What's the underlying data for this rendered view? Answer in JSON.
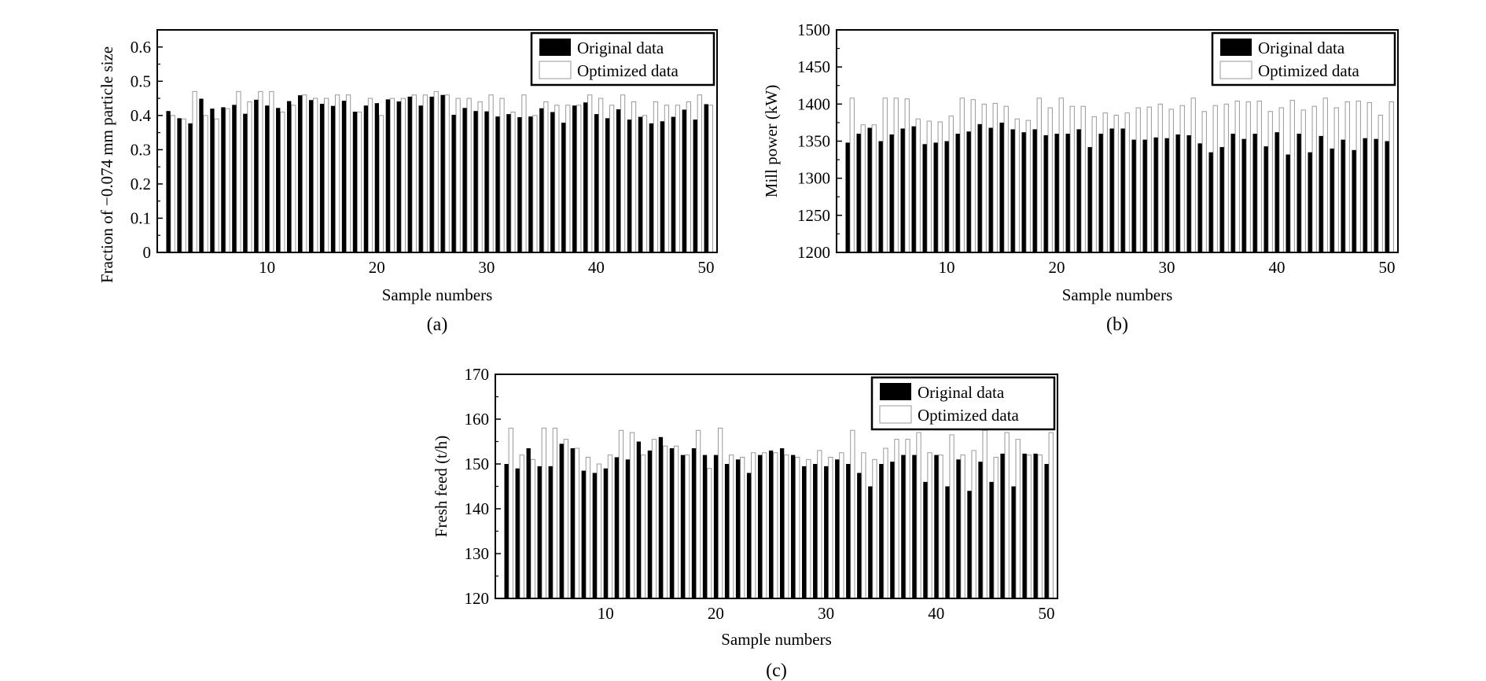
{
  "colors": {
    "original": "#000000",
    "optimized": "#ffffff",
    "optimized_edge": "#999999"
  },
  "chart_data": [
    {
      "type": "bar",
      "caption": "(a)",
      "xlabel": "Sample numbers",
      "ylabel": "Fraction of −0.074 mm particle size",
      "xlim": [
        0,
        51
      ],
      "ylim": [
        0,
        0.65
      ],
      "xticks": [
        10,
        20,
        30,
        40,
        50
      ],
      "yticks": [
        0,
        0.1,
        0.2,
        0.3,
        0.4,
        0.5,
        0.6
      ],
      "ytick_labels": [
        "0",
        "0.1",
        "0.2",
        "0.3",
        "0.4",
        "0.5",
        "0.6"
      ],
      "legend": "top-right",
      "grid": false,
      "x": [
        1,
        2,
        3,
        4,
        5,
        6,
        7,
        8,
        9,
        10,
        11,
        12,
        13,
        14,
        15,
        16,
        17,
        18,
        19,
        20,
        21,
        22,
        23,
        24,
        25,
        26,
        27,
        28,
        29,
        30,
        31,
        32,
        33,
        34,
        35,
        36,
        37,
        38,
        39,
        40,
        41,
        42,
        43,
        44,
        45,
        46,
        47,
        48,
        49,
        50
      ],
      "series": [
        {
          "name": "Original data",
          "values": [
            0.413,
            0.392,
            0.377,
            0.449,
            0.42,
            0.424,
            0.431,
            0.405,
            0.446,
            0.429,
            0.422,
            0.442,
            0.459,
            0.445,
            0.434,
            0.428,
            0.443,
            0.411,
            0.429,
            0.436,
            0.447,
            0.441,
            0.455,
            0.429,
            0.455,
            0.46,
            0.402,
            0.422,
            0.413,
            0.412,
            0.397,
            0.404,
            0.395,
            0.397,
            0.421,
            0.41,
            0.379,
            0.429,
            0.438,
            0.404,
            0.392,
            0.418,
            0.388,
            0.396,
            0.377,
            0.383,
            0.396,
            0.417,
            0.388,
            0.433
          ]
        },
        {
          "name": "Optimized data",
          "values": [
            0.4,
            0.39,
            0.47,
            0.4,
            0.39,
            0.42,
            0.47,
            0.44,
            0.47,
            0.47,
            0.41,
            0.43,
            0.46,
            0.45,
            0.45,
            0.46,
            0.46,
            0.41,
            0.45,
            0.4,
            0.45,
            0.45,
            0.46,
            0.46,
            0.47,
            0.46,
            0.45,
            0.45,
            0.44,
            0.46,
            0.45,
            0.41,
            0.46,
            0.4,
            0.44,
            0.43,
            0.43,
            0.43,
            0.46,
            0.45,
            0.43,
            0.46,
            0.44,
            0.4,
            0.44,
            0.43,
            0.43,
            0.44,
            0.46,
            0.43
          ]
        }
      ]
    },
    {
      "type": "bar",
      "caption": "(b)",
      "xlabel": "Sample numbers",
      "ylabel": "Mill power (kW)",
      "xlim": [
        0,
        51
      ],
      "ylim": [
        1200,
        1500
      ],
      "xticks": [
        10,
        20,
        30,
        40,
        50
      ],
      "yticks": [
        1200,
        1250,
        1300,
        1350,
        1400,
        1450,
        1500
      ],
      "ytick_labels": [
        "1200",
        "1250",
        "1300",
        "1350",
        "1400",
        "1450",
        "1500"
      ],
      "legend": "top-right",
      "grid": false,
      "x": [
        1,
        2,
        3,
        4,
        5,
        6,
        7,
        8,
        9,
        10,
        11,
        12,
        13,
        14,
        15,
        16,
        17,
        18,
        19,
        20,
        21,
        22,
        23,
        24,
        25,
        26,
        27,
        28,
        29,
        30,
        31,
        32,
        33,
        34,
        35,
        36,
        37,
        38,
        39,
        40,
        41,
        42,
        43,
        44,
        45,
        46,
        47,
        48,
        49,
        50
      ],
      "series": [
        {
          "name": "Original data",
          "values": [
            1348,
            1360,
            1368,
            1350,
            1359,
            1367,
            1370,
            1346,
            1348,
            1350,
            1360,
            1363,
            1373,
            1368,
            1375,
            1366,
            1362,
            1366,
            1358,
            1360,
            1360,
            1366,
            1342,
            1360,
            1367,
            1367,
            1352,
            1352,
            1355,
            1354,
            1359,
            1358,
            1347,
            1335,
            1342,
            1360,
            1353,
            1360,
            1343,
            1362,
            1332,
            1360,
            1335,
            1357,
            1340,
            1352,
            1338,
            1354,
            1353,
            1350
          ]
        },
        {
          "name": "Optimized data",
          "values": [
            1408,
            1372,
            1372,
            1408,
            1408,
            1407,
            1380,
            1377,
            1376,
            1384,
            1408,
            1406,
            1400,
            1401,
            1397,
            1380,
            1378,
            1408,
            1395,
            1408,
            1397,
            1397,
            1383,
            1388,
            1385,
            1388,
            1395,
            1396,
            1400,
            1393,
            1398,
            1408,
            1390,
            1398,
            1400,
            1404,
            1403,
            1404,
            1390,
            1395,
            1405,
            1392,
            1397,
            1408,
            1395,
            1403,
            1404,
            1402,
            1385,
            1403
          ]
        }
      ]
    },
    {
      "type": "bar",
      "caption": "(c)",
      "xlabel": "Sample numbers",
      "ylabel": "Fresh feed (t/h)",
      "xlim": [
        0,
        51
      ],
      "ylim": [
        120,
        170
      ],
      "xticks": [
        10,
        20,
        30,
        40,
        50
      ],
      "yticks": [
        120,
        130,
        140,
        150,
        160,
        170
      ],
      "ytick_labels": [
        "120",
        "130",
        "140",
        "150",
        "160",
        "170"
      ],
      "legend": "top-right",
      "grid": false,
      "x": [
        1,
        2,
        3,
        4,
        5,
        6,
        7,
        8,
        9,
        10,
        11,
        12,
        13,
        14,
        15,
        16,
        17,
        18,
        19,
        20,
        21,
        22,
        23,
        24,
        25,
        26,
        27,
        28,
        29,
        30,
        31,
        32,
        33,
        34,
        35,
        36,
        37,
        38,
        39,
        40,
        41,
        42,
        43,
        44,
        45,
        46,
        47,
        48,
        49,
        50
      ],
      "series": [
        {
          "name": "Original data",
          "values": [
            150,
            149,
            153.5,
            149.5,
            149.5,
            154.5,
            153.5,
            148.5,
            148,
            149,
            151.5,
            151,
            155,
            153,
            156,
            153.5,
            152,
            153.5,
            152,
            152,
            150,
            151,
            148,
            152,
            153,
            153.5,
            152,
            149.5,
            150,
            149.5,
            151,
            150,
            148,
            145,
            150,
            150.5,
            152,
            152,
            146,
            152,
            145,
            151,
            144,
            150.5,
            146,
            152.3,
            145,
            152.3,
            152.3,
            150
          ]
        },
        {
          "name": "Optimized data",
          "values": [
            158,
            152,
            151,
            158,
            158,
            155.5,
            153.5,
            151.5,
            150,
            152,
            157.5,
            157,
            152,
            155.5,
            154,
            154,
            152,
            157.5,
            149,
            158,
            152,
            151.5,
            152.5,
            152.5,
            152.5,
            152,
            151.5,
            151,
            153,
            151.5,
            152.5,
            157.5,
            152.5,
            151,
            153.5,
            155.5,
            155.5,
            157,
            152.5,
            152,
            156.5,
            152,
            153,
            157.5,
            151.5,
            157,
            155.5,
            152,
            152,
            157
          ]
        }
      ]
    }
  ]
}
